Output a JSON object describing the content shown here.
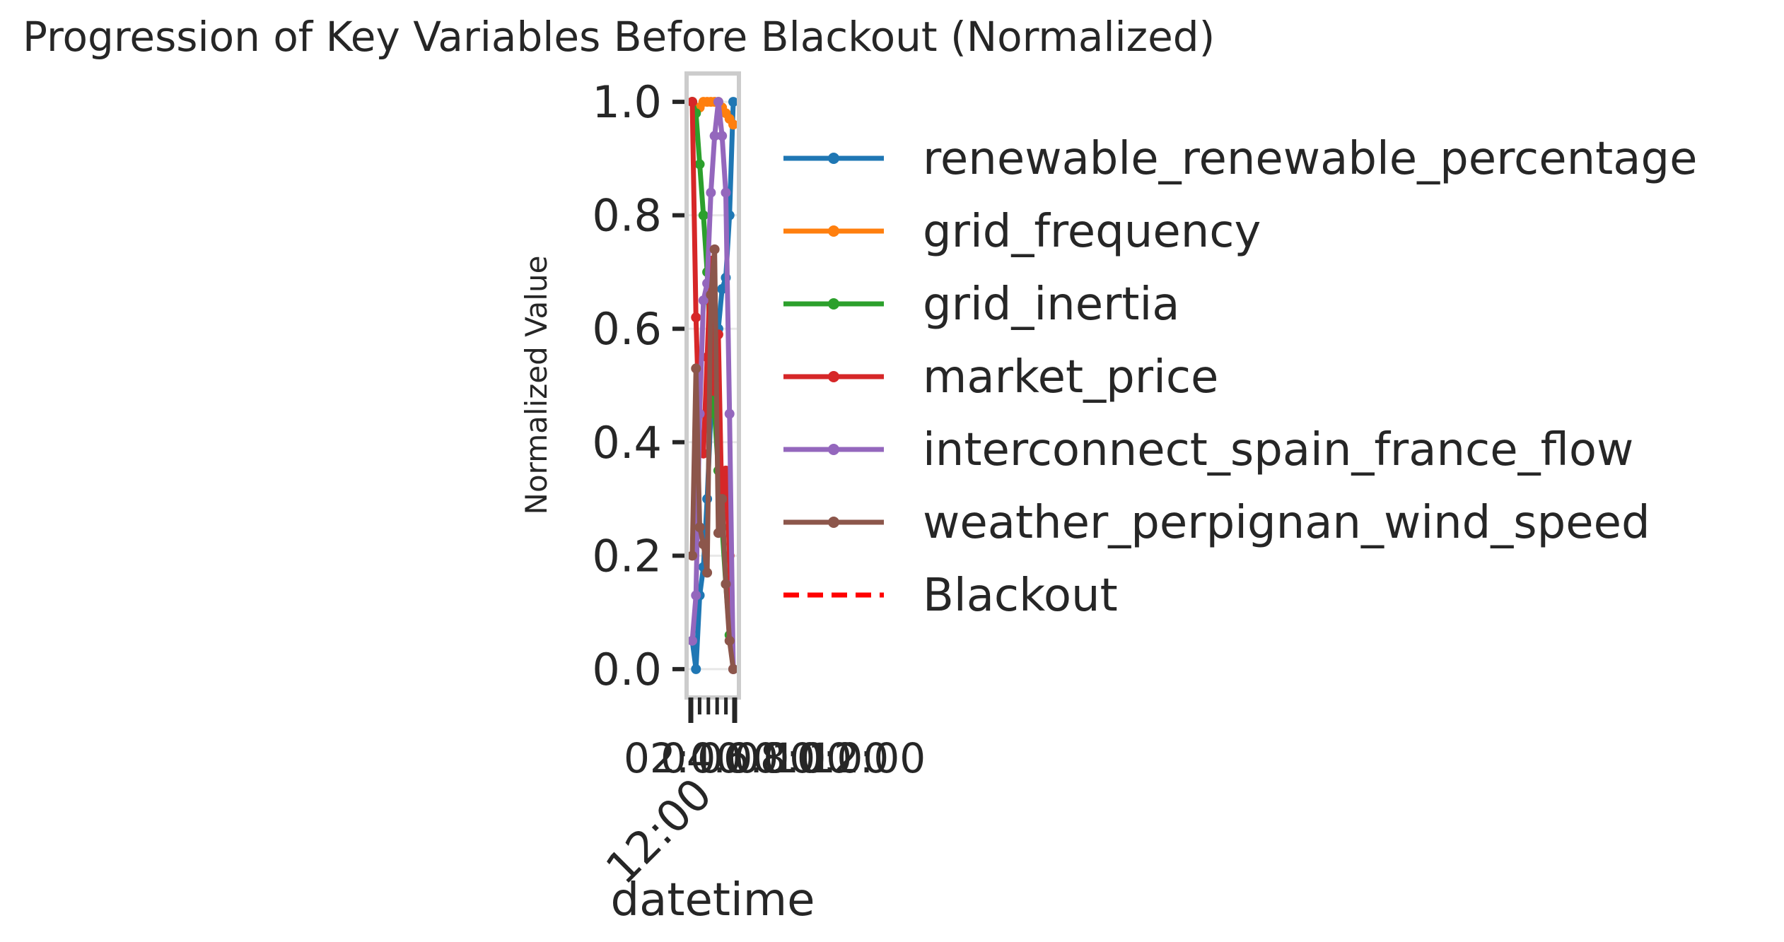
{
  "chart_data": {
    "type": "line",
    "title": "Progression of Key Variables Before Blackout (Normalized)",
    "xlabel": "datetime",
    "ylabel": "Normalized Value",
    "ylim": [
      -0.05,
      1.05
    ],
    "yticks": [
      0.0,
      0.2,
      0.4,
      0.6,
      0.8,
      1.0
    ],
    "ytick_labels": [
      "0.0",
      "0.2",
      "0.4",
      "0.6",
      "0.8",
      "1.0"
    ],
    "xtick_labels": [
      "02:00",
      "04:00",
      "06:00",
      "08:00",
      "10:00",
      "12:00"
    ],
    "xtick_date_label": "12:00",
    "x": [
      0,
      1,
      2,
      3,
      4,
      5,
      6,
      7,
      8,
      9,
      10,
      11
    ],
    "grid": true,
    "legend_position": "right",
    "series": [
      {
        "name": "renewable_renewable_percentage",
        "color": "#1f77b4",
        "values": [
          0.05,
          0.0,
          0.13,
          0.18,
          0.3,
          0.45,
          0.55,
          0.6,
          0.67,
          0.69,
          0.8,
          1.0
        ]
      },
      {
        "name": "grid_frequency",
        "color": "#ff7f0e",
        "values": [
          1.0,
          0.99,
          0.99,
          1.0,
          1.0,
          1.0,
          1.0,
          1.0,
          0.99,
          0.98,
          0.97,
          0.96
        ]
      },
      {
        "name": "grid_inertia",
        "color": "#2ca02c",
        "values": [
          1.0,
          0.98,
          0.89,
          0.8,
          0.7,
          0.55,
          0.45,
          0.35,
          0.25,
          0.15,
          0.06,
          0.0
        ]
      },
      {
        "name": "market_price",
        "color": "#d62728",
        "values": [
          1.0,
          0.62,
          0.4,
          0.38,
          0.55,
          0.72,
          0.49,
          0.59,
          0.27,
          0.35,
          0.2,
          0.0
        ]
      },
      {
        "name": "interconnect_spain_france_flow",
        "color": "#9467bd",
        "values": [
          0.05,
          0.13,
          0.45,
          0.65,
          0.68,
          0.84,
          0.94,
          1.0,
          0.94,
          0.84,
          0.45,
          0.0
        ]
      },
      {
        "name": "weather_perpignan_wind_speed",
        "color": "#8c564b",
        "values": [
          0.2,
          0.53,
          0.25,
          0.22,
          0.17,
          0.66,
          0.74,
          0.24,
          0.3,
          0.15,
          0.05,
          0.0
        ]
      }
    ],
    "blackout": {
      "name": "Blackout",
      "color": "#ff0000"
    }
  }
}
